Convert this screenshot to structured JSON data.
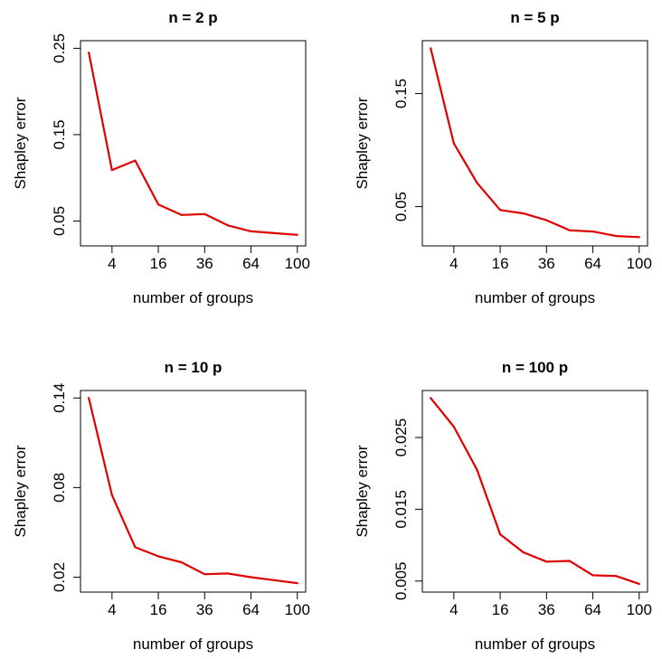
{
  "chart_data": [
    {
      "type": "line",
      "title": "n = 2 p",
      "xlabel": "number of groups",
      "ylabel": "Shapley error",
      "x_scale": "sqrt",
      "xlim": [
        1,
        100
      ],
      "ylim": [
        0.03,
        0.25
      ],
      "x_ticks": [
        4,
        16,
        36,
        64,
        100
      ],
      "x_tick_labels": [
        "4",
        "16",
        "36",
        "64",
        "100"
      ],
      "y_ticks": [
        0.05,
        0.15,
        0.25
      ],
      "y_tick_labels": [
        "0.05",
        "0.15",
        "0.25"
      ],
      "grid": false,
      "color": "#e00000",
      "x": [
        1,
        4,
        9,
        16,
        25,
        36,
        49,
        64,
        81,
        100
      ],
      "values": [
        0.245,
        0.109,
        0.12,
        0.069,
        0.057,
        0.058,
        0.045,
        0.038,
        0.036,
        0.034
      ]
    },
    {
      "type": "line",
      "title": "n = 5 p",
      "xlabel": "number of groups",
      "ylabel": "Shapley error",
      "x_scale": "sqrt",
      "xlim": [
        1,
        100
      ],
      "ylim": [
        0.022,
        0.19
      ],
      "x_ticks": [
        4,
        16,
        36,
        64,
        100
      ],
      "x_tick_labels": [
        "4",
        "16",
        "36",
        "64",
        "100"
      ],
      "y_ticks": [
        0.05,
        0.15
      ],
      "y_tick_labels": [
        "0.05",
        "0.15"
      ],
      "grid": false,
      "color": "#e00000",
      "x": [
        1,
        4,
        9,
        16,
        25,
        36,
        49,
        64,
        81,
        100
      ],
      "values": [
        0.19,
        0.106,
        0.071,
        0.047,
        0.044,
        0.038,
        0.029,
        0.028,
        0.024,
        0.023
      ]
    },
    {
      "type": "line",
      "title": "n = 10 p",
      "xlabel": "number of groups",
      "ylabel": "Shapley error",
      "x_scale": "sqrt",
      "xlim": [
        1,
        100
      ],
      "ylim": [
        0.015,
        0.14
      ],
      "x_ticks": [
        4,
        16,
        36,
        64,
        100
      ],
      "x_tick_labels": [
        "4",
        "16",
        "36",
        "64",
        "100"
      ],
      "y_ticks": [
        0.02,
        0.08,
        0.14
      ],
      "y_tick_labels": [
        "0.02",
        "0.08",
        "0.14"
      ],
      "grid": false,
      "color": "#e00000",
      "x": [
        1,
        4,
        9,
        16,
        25,
        36,
        49,
        64,
        81,
        100
      ],
      "values": [
        0.14,
        0.075,
        0.04,
        0.034,
        0.03,
        0.022,
        0.0225,
        0.02,
        0.018,
        0.016
      ]
    },
    {
      "type": "line",
      "title": "n = 100 p",
      "xlabel": "number of groups",
      "ylabel": "Shapley error",
      "x_scale": "sqrt",
      "xlim": [
        1,
        100
      ],
      "ylim": [
        0.0045,
        0.0305
      ],
      "x_ticks": [
        4,
        16,
        36,
        64,
        100
      ],
      "x_tick_labels": [
        "4",
        "16",
        "36",
        "64",
        "100"
      ],
      "y_ticks": [
        0.005,
        0.015,
        0.025
      ],
      "y_tick_labels": [
        "0.005",
        "0.015",
        "0.025"
      ],
      "grid": false,
      "color": "#e00000",
      "x": [
        1,
        4,
        9,
        16,
        25,
        36,
        49,
        64,
        81,
        100
      ],
      "values": [
        0.0305,
        0.0265,
        0.0205,
        0.0115,
        0.009,
        0.0077,
        0.0078,
        0.0058,
        0.0057,
        0.0046
      ]
    }
  ]
}
